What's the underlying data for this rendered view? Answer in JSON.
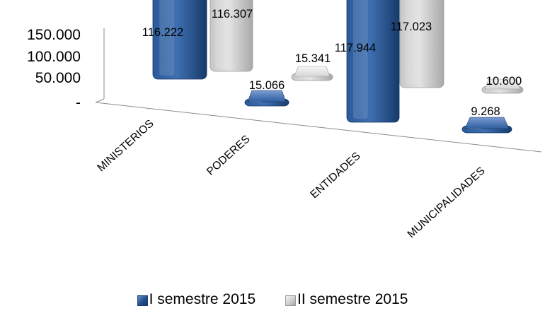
{
  "chart_data": {
    "type": "bar",
    "title": "",
    "xlabel": "",
    "ylabel": "",
    "ylim": [
      0,
      150000
    ],
    "y_tick_labels": [
      "150.000",
      "100.000",
      "50.000",
      "-"
    ],
    "y_tick_values": [
      150000,
      100000,
      50000,
      0
    ],
    "categories": [
      "MINISTERIOS",
      "PODERES",
      "ENTIDADES",
      "MUNICIPALIDADES"
    ],
    "series": [
      {
        "name": "I semestre 2015",
        "color": "#1f4e8c",
        "values": [
          116222,
          15066,
          117944,
          9268
        ],
        "labels": [
          "116.222",
          "15.066",
          "117.944",
          "9.268"
        ]
      },
      {
        "name": "II semestre 2015",
        "color": "#d0d0d0",
        "values": [
          116307,
          15341,
          117023,
          10600
        ],
        "labels": [
          "116.307",
          "15.341",
          "117.023",
          "10.600"
        ]
      }
    ],
    "legend_position": "bottom",
    "grid": false,
    "style": "3d-perspective"
  }
}
